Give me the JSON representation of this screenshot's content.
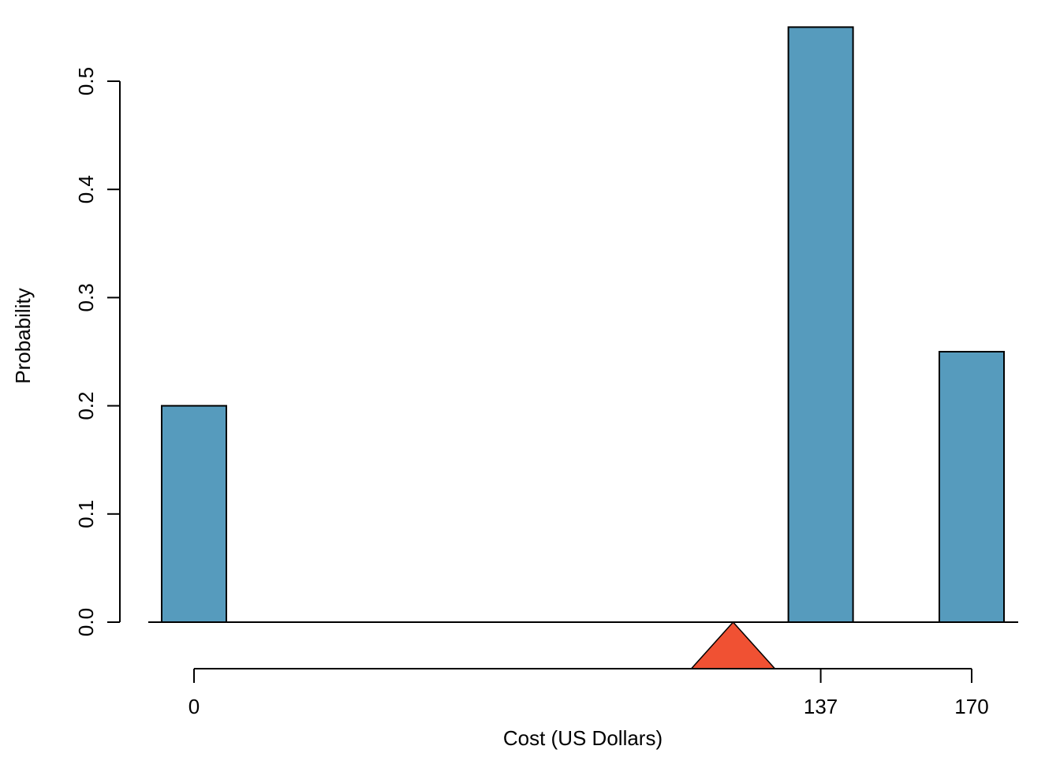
{
  "chart_data": {
    "type": "bar",
    "title": "",
    "xlabel": "Cost (US Dollars)",
    "ylabel": "Probability",
    "bars": [
      {
        "x": 0,
        "value": 0.2
      },
      {
        "x": 137,
        "value": 0.55
      },
      {
        "x": 170,
        "value": 0.25
      }
    ],
    "x_ticks": [
      0,
      137,
      170
    ],
    "y_ticks": [
      "0.0",
      "0.1",
      "0.2",
      "0.3",
      "0.4",
      "0.5"
    ],
    "ylim": [
      0,
      0.5
    ],
    "xlim": [
      0,
      170
    ],
    "expected_value_marker": 117.85,
    "grid": false,
    "colors": {
      "bar_fill": "#569BBD",
      "bar_stroke": "#000000",
      "marker_fill": "#F05133",
      "axis": "#000000"
    }
  }
}
